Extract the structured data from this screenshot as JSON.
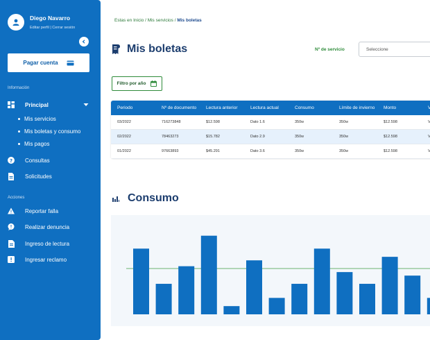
{
  "user": {
    "name": "Diego Navarro",
    "links": "Editar perfil  |  Cerrar sesión"
  },
  "sidebar": {
    "pay_label": "Pagar cuenta",
    "section_info": "Información",
    "principal": "Principal",
    "sub_items": [
      "Mis servicios",
      "Mis boletas y consumo",
      "Mis pagos"
    ],
    "consultas": "Consultas",
    "solicitudes": "Solicitudes",
    "section_actions": "Acciones",
    "actions": [
      "Reportar falla",
      "Realizar denuncia",
      "Ingreso de lectura",
      "Ingresar reclamo"
    ]
  },
  "breadcrumb": {
    "home": "Estas en Inicio",
    "sep": " / ",
    "mid": "Mis servicios",
    "current": "Mis boletas"
  },
  "page_title": "Mis boletas",
  "service": {
    "label": "Nº de servicio",
    "placeholder": "Seleccione"
  },
  "filter_label": "Filtro por año",
  "table": {
    "headers": [
      "Periodo",
      "Nº de documento",
      "Lectura anterior",
      "Lectura actual",
      "Consumo",
      "Límite de invierno",
      "Monto",
      "V"
    ],
    "rows": [
      [
        "03/2022",
        "716273848",
        "$12.598",
        "Dato 1.6",
        "350w",
        "350w",
        "$12.598",
        "V"
      ],
      [
        "02/2022",
        "78463273",
        "$15.782",
        "Dato 2.9",
        "350w",
        "350w",
        "$12.598",
        "V"
      ],
      [
        "01/2022",
        "97663893",
        "$45.291",
        "Dato 3.6",
        "350w",
        "350w",
        "$12.598",
        "V"
      ]
    ]
  },
  "consumo_title": "Consumo",
  "colors": {
    "primary": "#0f6fc1",
    "accent_green": "#2e8b3a",
    "title": "#1c3d6e"
  },
  "chart_data": {
    "type": "bar",
    "title": "",
    "values": [
      56,
      26,
      41,
      67,
      7,
      46,
      14,
      26,
      56,
      36,
      26,
      49,
      33,
      14
    ],
    "ylim": [
      0,
      68
    ],
    "reference_line": 39,
    "grid": false,
    "legend": "none"
  }
}
